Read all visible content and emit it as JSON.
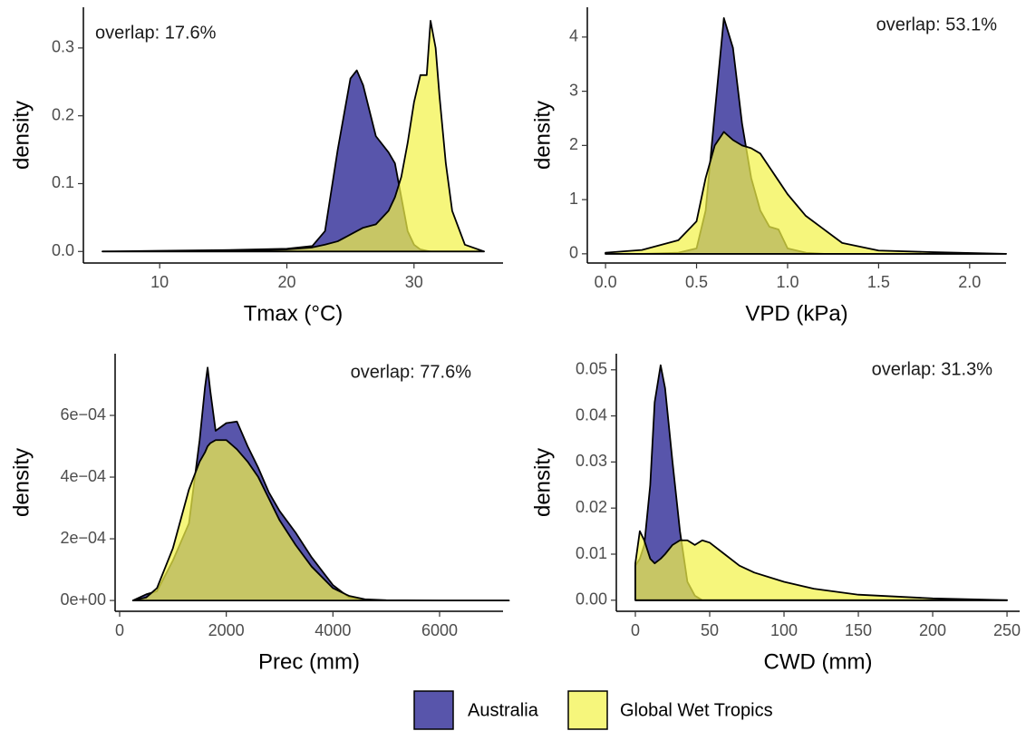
{
  "chart_data": [
    {
      "type": "area",
      "x_label": "Tmax (°C)",
      "y_label": "density",
      "annotation": "overlap: 17.6%",
      "x": [
        5.5,
        10,
        15,
        20,
        22,
        23,
        24,
        25,
        25.5,
        26,
        27,
        28,
        28.5,
        29,
        29.5,
        30,
        30.5,
        31,
        31.3,
        31.7,
        32,
        32.5,
        33,
        34,
        35.5
      ],
      "series": [
        {
          "name": "Australia",
          "color": "#4f4ca6",
          "values": [
            0,
            0.001,
            0.002,
            0.004,
            0.008,
            0.03,
            0.15,
            0.255,
            0.267,
            0.245,
            0.17,
            0.146,
            0.13,
            0.08,
            0.03,
            0.01,
            0.003,
            0.001,
            0,
            0,
            0,
            0,
            0,
            0,
            0
          ]
        },
        {
          "name": "Global Wet Tropics",
          "color": "#f2f24a",
          "values": [
            0,
            0,
            0.001,
            0.003,
            0.006,
            0.01,
            0.015,
            0.025,
            0.03,
            0.035,
            0.04,
            0.06,
            0.08,
            0.11,
            0.16,
            0.22,
            0.26,
            0.26,
            0.34,
            0.3,
            0.23,
            0.13,
            0.06,
            0.01,
            0
          ]
        }
      ],
      "xlim": [
        4,
        37
      ],
      "ylim": [
        -0.017,
        0.36
      ],
      "xticks": [
        10,
        20,
        30
      ],
      "yticks": [
        {
          "value": 0,
          "label": "0.0"
        },
        0.1,
        0.2,
        0.3
      ]
    },
    {
      "type": "area",
      "x_label": "VPD (kPa)",
      "y_label": "density",
      "annotation": "overlap: 53.1%",
      "x": [
        0,
        0.2,
        0.4,
        0.5,
        0.55,
        0.6,
        0.65,
        0.7,
        0.75,
        0.8,
        0.85,
        0.9,
        0.95,
        1.0,
        1.1,
        1.2,
        1.3,
        1.5,
        1.8,
        2.2
      ],
      "series": [
        {
          "name": "Australia",
          "color": "#4f4ca6",
          "values": [
            0,
            0,
            0.02,
            0.1,
            0.8,
            2.6,
            4.35,
            3.8,
            2.4,
            1.4,
            0.8,
            0.5,
            0.45,
            0.1,
            0.02,
            0,
            0,
            0,
            0,
            0
          ]
        },
        {
          "name": "Global Wet Tropics",
          "color": "#f2f24a",
          "values": [
            0.02,
            0.07,
            0.25,
            0.6,
            1.4,
            2.0,
            2.25,
            2.1,
            2.0,
            1.95,
            1.85,
            1.6,
            1.35,
            1.1,
            0.7,
            0.45,
            0.2,
            0.06,
            0.03,
            0
          ]
        }
      ],
      "xlim": [
        -0.1,
        2.2
      ],
      "ylim": [
        -0.17,
        4.55
      ],
      "xticks": [
        {
          "value": 0,
          "label": "0.0"
        },
        0.5,
        {
          "value": 1,
          "label": "1.0"
        },
        1.5,
        {
          "value": 2,
          "label": "2.0"
        }
      ],
      "yticks": [
        0,
        1,
        2,
        3,
        4
      ]
    },
    {
      "type": "area",
      "x_label": "Prec (mm)",
      "y_label": "density",
      "annotation": "overlap: 77.6%",
      "x": [
        250,
        500,
        700,
        1000,
        1300,
        1500,
        1600,
        1650,
        1700,
        1800,
        2000,
        2200,
        2400,
        2600,
        2800,
        3000,
        3300,
        3600,
        4000,
        4300,
        4600,
        5000,
        6000,
        7300
      ],
      "series": [
        {
          "name": "Australia",
          "color": "#4f4ca6",
          "values": [
            0,
            2e-05,
            3e-05,
            0.00013,
            0.00025,
            0.00052,
            0.00069,
            0.000755,
            0.00068,
            0.00055,
            0.000575,
            0.00058,
            0.0005,
            0.00043,
            0.00035,
            0.00029,
            0.00022,
            0.00014,
            5e-05,
            1e-05,
            2e-06,
            0,
            0,
            0
          ]
        },
        {
          "name": "Global Wet Tropics",
          "color": "#f2f24a",
          "values": [
            0,
            1e-05,
            4e-05,
            0.00017,
            0.00036,
            0.00045,
            0.00048,
            0.0005,
            0.00051,
            0.00052,
            0.00052,
            0.00049,
            0.00045,
            0.0004,
            0.00033,
            0.00026,
            0.00018,
            0.00011,
            4e-05,
            1.5e-05,
            4e-06,
            1e-06,
            0,
            0
          ]
        }
      ],
      "xlim": [
        -85,
        7190
      ],
      "ylim": [
        -3.5e-05,
        0.0008
      ],
      "xticks": [
        0,
        2000,
        4000,
        6000
      ],
      "yticks": [
        {
          "value": 0,
          "label": "0e+00"
        },
        {
          "value": 0.0002,
          "label": "2e−04"
        },
        {
          "value": 0.0004,
          "label": "4e−04"
        },
        {
          "value": 0.0006,
          "label": "6e−04"
        }
      ]
    },
    {
      "type": "area",
      "x_label": "CWD (mm)",
      "y_label": "density",
      "annotation": "overlap: 31.3%",
      "x": [
        0,
        3,
        6,
        10,
        13,
        17,
        20,
        25,
        30,
        35,
        40,
        45,
        50,
        60,
        70,
        80,
        100,
        120,
        150,
        200,
        250
      ],
      "series": [
        {
          "name": "Australia",
          "color": "#4f4ca6",
          "values": [
            0.0075,
            0.009,
            0.012,
            0.025,
            0.043,
            0.051,
            0.046,
            0.03,
            0.015,
            0.004,
            0.001,
            0,
            0,
            0,
            0,
            0,
            0,
            0,
            0,
            0,
            0
          ]
        },
        {
          "name": "Global Wet Tropics",
          "color": "#f2f24a",
          "values": [
            0.008,
            0.015,
            0.013,
            0.009,
            0.008,
            0.009,
            0.01,
            0.012,
            0.013,
            0.013,
            0.012,
            0.013,
            0.0125,
            0.01,
            0.0075,
            0.006,
            0.004,
            0.0025,
            0.0012,
            0.0004,
            0
          ]
        }
      ],
      "xlim": [
        -12.8,
        258.5
      ],
      "ylim": [
        -0.0024,
        0.0535
      ],
      "xticks": [
        0,
        50,
        100,
        150,
        200,
        250
      ],
      "yticks": [
        {
          "value": 0,
          "label": "0.00"
        },
        0.01,
        0.02,
        0.03,
        0.04,
        0.05
      ]
    }
  ]
}
